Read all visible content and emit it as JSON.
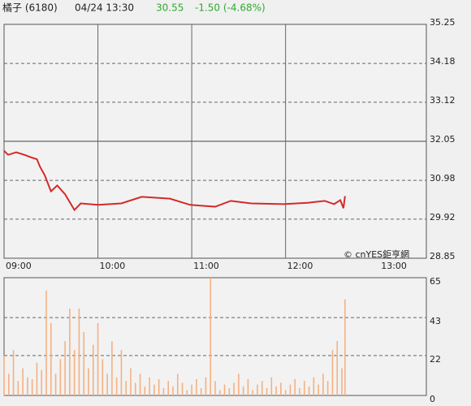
{
  "header": {
    "name": "橘子 (6180)",
    "datetime": "04/24 13:30",
    "price": "30.55",
    "change": "-1.50 (-4.68%)"
  },
  "watermark": "© cnYES鉅亨網",
  "chart_data": [
    {
      "type": "line",
      "color": "#d42a2a",
      "x": [
        0,
        2.6,
        7.8,
        13,
        18,
        21,
        23,
        26,
        30,
        34,
        39,
        45,
        49,
        60,
        75,
        88,
        106,
        119,
        135,
        145,
        158,
        179,
        195,
        205,
        211,
        215,
        217,
        218
      ],
      "values": [
        31.79,
        31.68,
        31.75,
        31.68,
        31.6,
        31.56,
        31.35,
        31.12,
        30.68,
        30.84,
        30.6,
        30.17,
        30.35,
        30.31,
        30.35,
        30.53,
        30.48,
        30.31,
        30.26,
        30.42,
        30.35,
        30.33,
        30.37,
        30.42,
        30.33,
        30.44,
        30.22,
        30.55
      ],
      "xlim": [
        0,
        270
      ],
      "xticks": [
        {
          "value": 0,
          "label": "09:00"
        },
        {
          "value": 60,
          "label": "10:00"
        },
        {
          "value": 120,
          "label": "11:00"
        },
        {
          "value": 180,
          "label": "12:00"
        },
        {
          "value": 240,
          "label": "13:00"
        }
      ],
      "ylim": [
        28.85,
        35.25
      ],
      "yticks": [
        28.85,
        29.92,
        30.98,
        32.05,
        33.12,
        34.18,
        35.25
      ],
      "reference": 32.05,
      "grid": true,
      "xgrid": true
    },
    {
      "type": "bar",
      "color": "#f4b183",
      "x": [
        0,
        3,
        6,
        9,
        12,
        15,
        18,
        21,
        24,
        27,
        30,
        33,
        36,
        39,
        42,
        45,
        48,
        51,
        54,
        57,
        60,
        63,
        66,
        69,
        72,
        75,
        78,
        81,
        84,
        87,
        90,
        93,
        96,
        99,
        102,
        105,
        108,
        111,
        114,
        117,
        120,
        123,
        126,
        129,
        132,
        135,
        138,
        141,
        144,
        147,
        150,
        153,
        156,
        159,
        162,
        165,
        168,
        171,
        174,
        177,
        180,
        183,
        186,
        189,
        192,
        195,
        198,
        201,
        204,
        207,
        210,
        213,
        216,
        218
      ],
      "values": [
        22,
        12,
        25,
        8,
        15,
        10,
        9,
        18,
        14,
        58,
        40,
        12,
        20,
        30,
        48,
        25,
        48,
        35,
        15,
        28,
        40,
        20,
        12,
        30,
        10,
        25,
        8,
        15,
        7,
        12,
        5,
        10,
        6,
        9,
        4,
        8,
        5,
        12,
        7,
        3,
        6,
        9,
        4,
        10,
        65,
        8,
        3,
        6,
        4,
        7,
        12,
        5,
        9,
        3,
        6,
        8,
        4,
        10,
        5,
        7,
        3,
        6,
        9,
        4,
        8,
        5,
        10,
        6,
        12,
        8,
        25,
        30,
        15,
        53
      ],
      "xlim": [
        0,
        270
      ],
      "ylim": [
        0,
        65
      ],
      "yticks": [
        0,
        22,
        43,
        65
      ],
      "grid": true,
      "xgrid": false
    }
  ]
}
